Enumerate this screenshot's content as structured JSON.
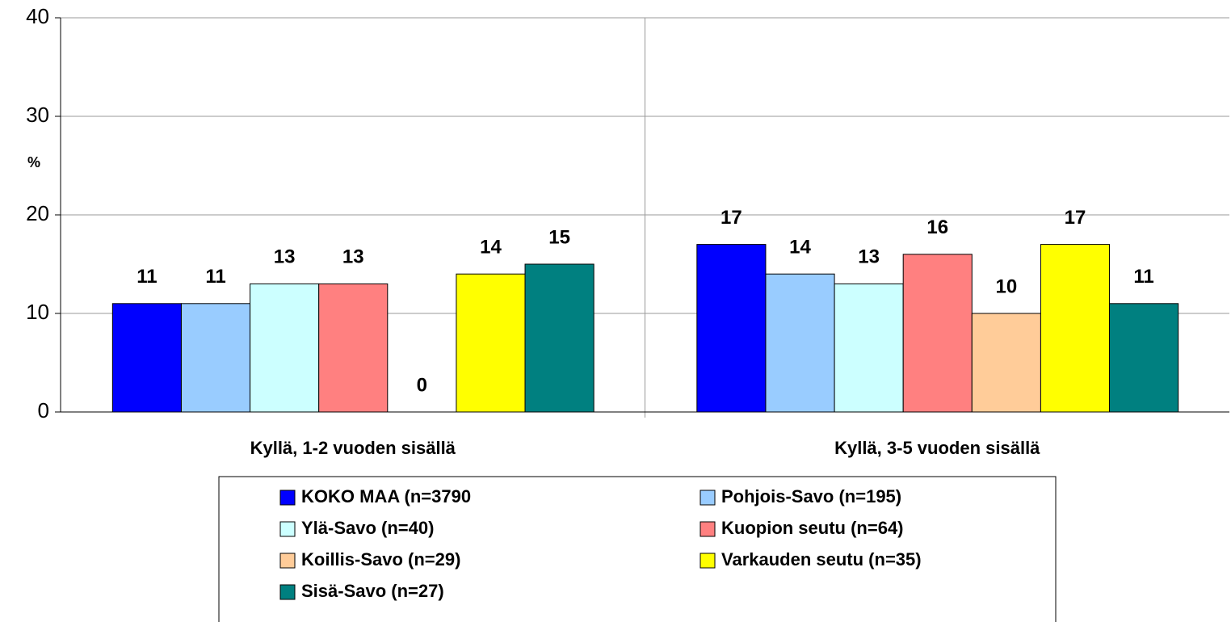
{
  "chart_data": {
    "type": "bar",
    "y_label": "%",
    "categories": [
      "Kyllä, 1-2 vuoden sisällä",
      "Kyllä, 3-5 vuoden sisällä"
    ],
    "series": [
      {
        "name": "KOKO MAA (n=3790",
        "color": "#0000ff",
        "values": [
          11,
          17
        ]
      },
      {
        "name": "Pohjois-Savo (n=195)",
        "color": "#99ccff",
        "values": [
          11,
          14
        ]
      },
      {
        "name": "Ylä-Savo (n=40)",
        "color": "#ccffff",
        "values": [
          13,
          13
        ]
      },
      {
        "name": "Kuopion seutu (n=64)",
        "color": "#ff8080",
        "values": [
          13,
          16
        ]
      },
      {
        "name": "Koillis-Savo (n=29)",
        "color": "#ffcc99",
        "values": [
          0,
          10
        ]
      },
      {
        "name": "Varkauden seutu (n=35)",
        "color": "#ffff00",
        "values": [
          14,
          17
        ]
      },
      {
        "name": "Sisä-Savo (n=27)",
        "color": "#008080",
        "values": [
          15,
          11
        ]
      }
    ],
    "ylim": [
      0,
      40
    ],
    "yticks": [
      0,
      10,
      20,
      30,
      40
    ],
    "grid": true
  }
}
